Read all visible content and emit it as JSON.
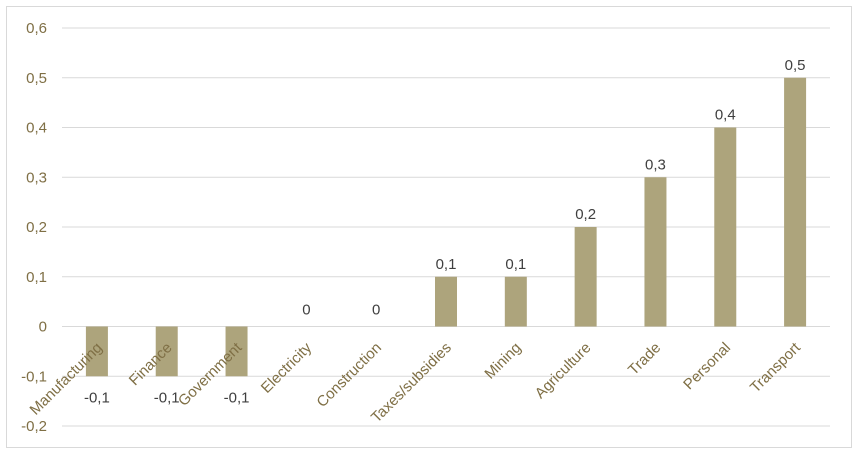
{
  "chart_data": {
    "type": "bar",
    "categories": [
      "Manufacturing",
      "Finance",
      "Government",
      "Electricity",
      "Construction",
      "Taxes/subsidies",
      "Mining",
      "Agriculture",
      "Trade",
      "Personal",
      "Transport"
    ],
    "values": [
      -0.1,
      -0.1,
      -0.1,
      0,
      0,
      0.1,
      0.1,
      0.2,
      0.3,
      0.4,
      0.5
    ],
    "data_labels": [
      "-0,1",
      "-0,1",
      "-0,1",
      "0",
      "0",
      "0,1",
      "0,1",
      "0,2",
      "0,3",
      "0,4",
      "0,5"
    ],
    "ylim": [
      -0.2,
      0.6
    ],
    "yticks": [
      0.6,
      0.5,
      0.4,
      0.3,
      0.2,
      0.1,
      0,
      -0.1,
      -0.2
    ],
    "ytick_labels": [
      "0,6",
      "0,5",
      "0,4",
      "0,3",
      "0,2",
      "0,1",
      "0",
      "-0,1",
      "-0,2"
    ],
    "title": "",
    "xlabel": "",
    "ylabel": "",
    "grid": true,
    "legend": "none",
    "colors": {
      "bar": "#ada47c",
      "grid": "#d9d9d9",
      "axis_text": "#7f6f45",
      "label_text": "#3f3f3f"
    }
  }
}
